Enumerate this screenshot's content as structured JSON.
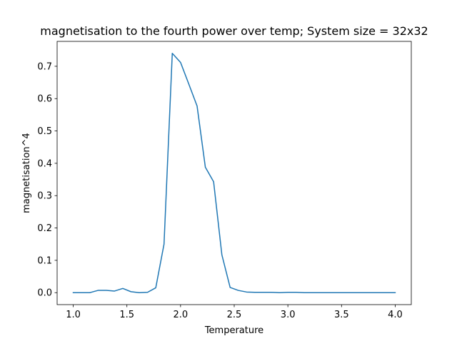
{
  "chart_data": {
    "type": "line",
    "title": "magnetisation to the fourth power over temp; System size = 32x32",
    "xlabel": "Temperature",
    "ylabel": "magnetisation^4",
    "xlim": [
      0.85,
      4.15
    ],
    "ylim": [
      -0.037,
      0.777
    ],
    "x_ticks": [
      1.0,
      1.5,
      2.0,
      2.5,
      3.0,
      3.5,
      4.0
    ],
    "x_tick_labels": [
      "1.0",
      "1.5",
      "2.0",
      "2.5",
      "3.0",
      "3.5",
      "4.0"
    ],
    "y_ticks": [
      0.0,
      0.1,
      0.2,
      0.3,
      0.4,
      0.5,
      0.6,
      0.7
    ],
    "y_tick_labels": [
      "0.0",
      "0.1",
      "0.2",
      "0.3",
      "0.4",
      "0.5",
      "0.6",
      "0.7"
    ],
    "grid": false,
    "series": [
      {
        "color": "#1f77b4",
        "x": [
          1.0,
          1.077,
          1.154,
          1.231,
          1.308,
          1.385,
          1.462,
          1.538,
          1.615,
          1.692,
          1.769,
          1.846,
          1.923,
          2.0,
          2.077,
          2.154,
          2.231,
          2.308,
          2.385,
          2.462,
          2.538,
          2.615,
          2.692,
          2.769,
          2.846,
          2.923,
          3.0,
          3.077,
          3.154,
          3.231,
          3.308,
          3.385,
          3.462,
          3.538,
          3.615,
          3.692,
          3.769,
          3.846,
          3.923,
          4.0
        ],
        "y": [
          0.0,
          0.0,
          0.0,
          0.007,
          0.007,
          0.005,
          0.013,
          0.003,
          0.0,
          0.001,
          0.015,
          0.15,
          0.74,
          0.712,
          0.645,
          0.577,
          0.388,
          0.343,
          0.117,
          0.016,
          0.007,
          0.002,
          0.001,
          0.001,
          0.001,
          0.0,
          0.001,
          0.001,
          0.0,
          0.0,
          0.0,
          0.0,
          0.0,
          0.0,
          0.0,
          0.0,
          0.0,
          0.0,
          0.0,
          0.0
        ]
      }
    ]
  }
}
